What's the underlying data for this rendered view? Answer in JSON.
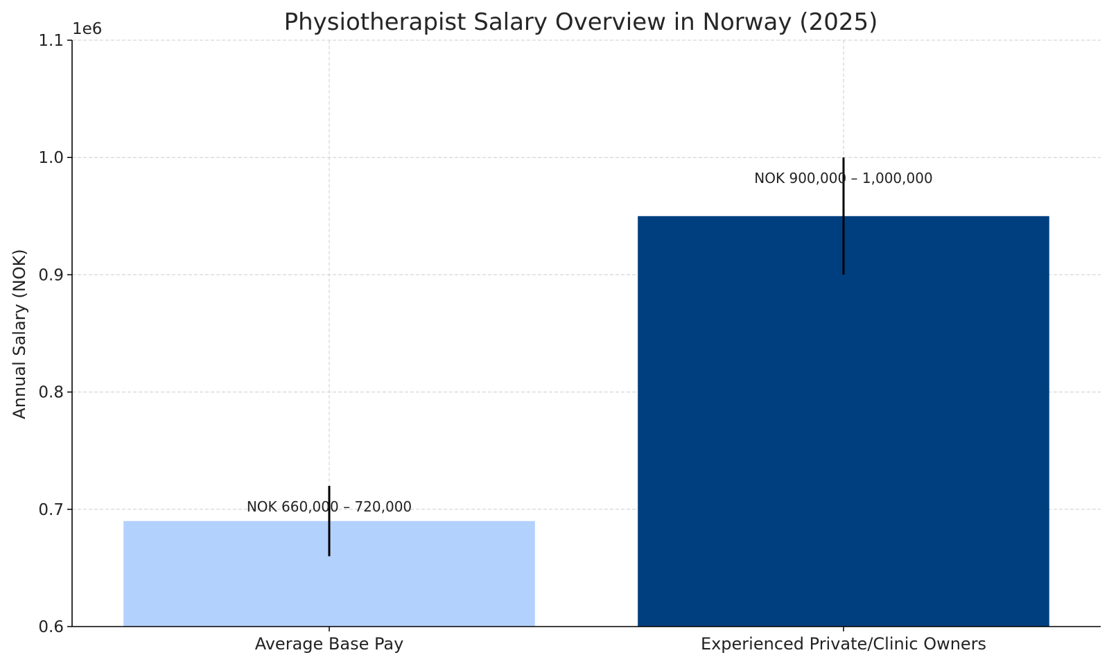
{
  "chart_data": {
    "type": "bar",
    "title": "Physiotherapist Salary Overview in Norway (2025)",
    "xlabel": "",
    "ylabel": "Annual Salary (NOK)",
    "y_offset_label": "1e6",
    "ylim": [
      600000,
      1100000
    ],
    "yticks": [
      600000,
      700000,
      800000,
      900000,
      1000000,
      1100000
    ],
    "ytick_labels": [
      "0.6",
      "0.7",
      "0.8",
      "0.9",
      "1.0",
      "1.1"
    ],
    "categories": [
      "Average Base Pay",
      "Experienced Private/Clinic Owners"
    ],
    "values": [
      690000,
      950000
    ],
    "error_low": [
      660000,
      900000
    ],
    "error_high": [
      720000,
      1000000
    ],
    "annotations": [
      "NOK 660,000 – 720,000",
      "NOK 900,000 – 1,000,000"
    ],
    "colors": [
      "#b3d1fd",
      "#003f7f"
    ],
    "grid": true
  }
}
